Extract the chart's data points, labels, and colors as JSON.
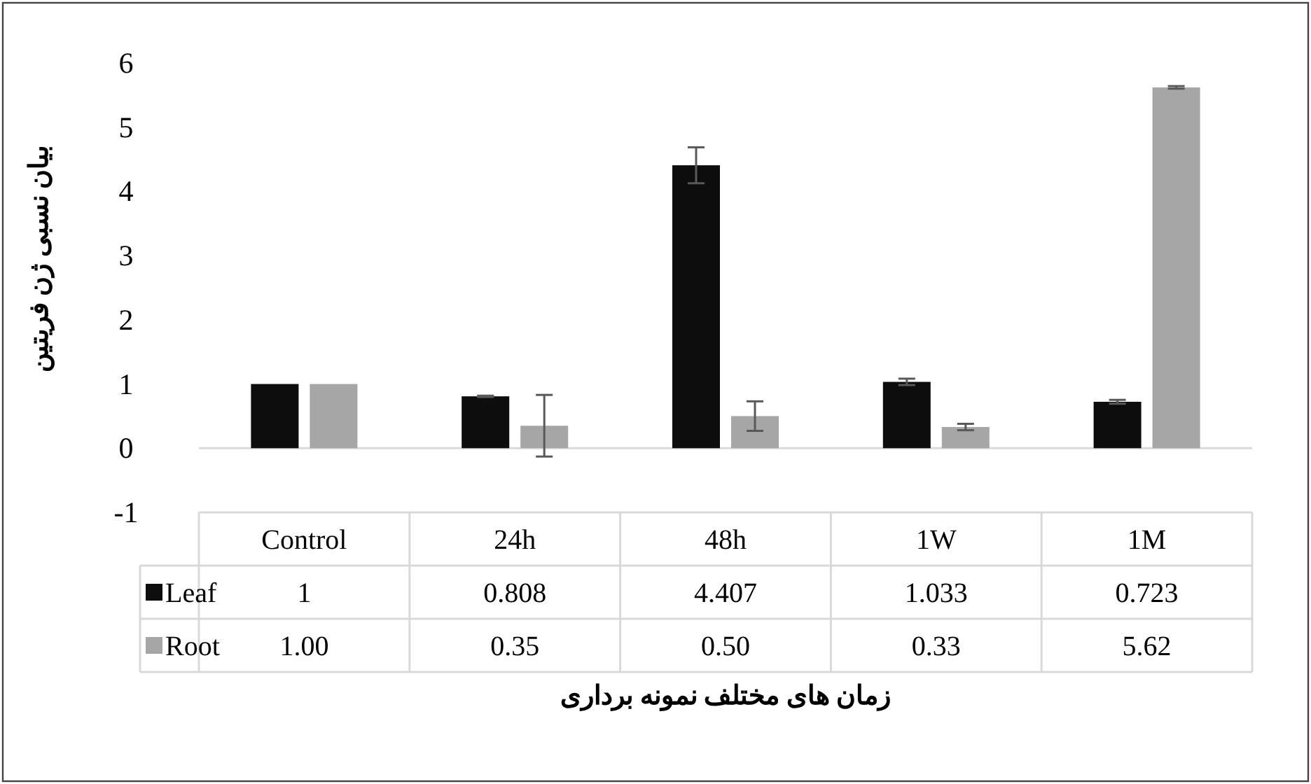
{
  "chart_data": {
    "type": "bar",
    "xlabel": "زمان های مختلف نمونه برداری",
    "ylabel": "بیان نسبی ژن فریتین",
    "categories": [
      "Control",
      "24h",
      "48h",
      "1W",
      "1M"
    ],
    "series": [
      {
        "name": "Leaf",
        "color": "#0d0d0d",
        "values": [
          1,
          0.808,
          4.407,
          1.033,
          0.723
        ],
        "errors": [
          null,
          0.01,
          0.28,
          0.05,
          0.03
        ],
        "value_labels": [
          "1",
          "0.808",
          "4.407",
          "1.033",
          "0.723"
        ]
      },
      {
        "name": "Root",
        "color": "#a6a6a6",
        "values": [
          1.0,
          0.35,
          0.5,
          0.33,
          5.62
        ],
        "errors": [
          null,
          0.48,
          0.23,
          0.05,
          0.02
        ],
        "value_labels": [
          "1.00",
          "0.35",
          "0.50",
          "0.33",
          "5.62"
        ]
      }
    ],
    "ylim": [
      -1,
      6
    ],
    "yticks": [
      -1,
      0,
      1,
      2,
      3,
      4,
      5,
      6
    ],
    "legend": "bottom"
  }
}
